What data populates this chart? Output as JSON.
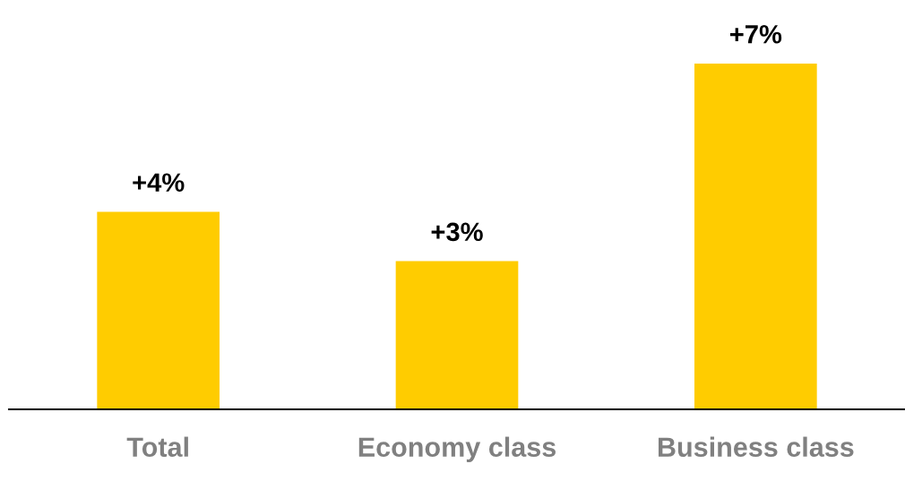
{
  "chart_data": {
    "type": "bar",
    "categories": [
      "Total",
      "Economy class",
      "Business class"
    ],
    "values": [
      4,
      3,
      7
    ],
    "color": "#ffcc00",
    "value_labels": [
      "+4%",
      "+3%",
      "+7%"
    ]
  }
}
